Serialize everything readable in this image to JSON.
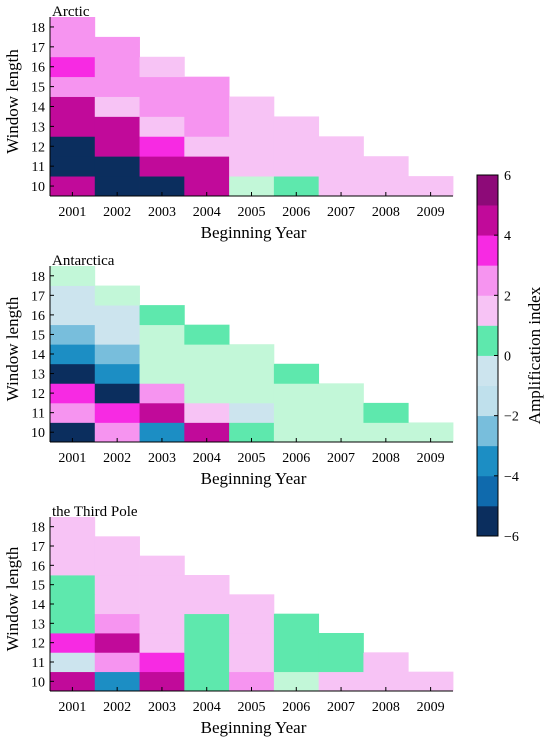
{
  "chart_data": [
    {
      "type": "heatmap",
      "title": "Arctic",
      "xlabel": "Beginning Year",
      "ylabel": "Window length",
      "x": [
        2001,
        2002,
        2003,
        2004,
        2005,
        2006,
        2007,
        2008,
        2009
      ],
      "y": [
        10,
        11,
        12,
        13,
        14,
        15,
        16,
        17,
        18
      ],
      "values": [
        [
          5,
          -6,
          -6,
          5,
          0,
          1,
          2,
          2,
          2
        ],
        [
          -6,
          -6,
          5,
          5,
          2,
          2,
          2,
          2,
          null
        ],
        [
          -6,
          5,
          4,
          2,
          2,
          2,
          2,
          null,
          null
        ],
        [
          5,
          5,
          2,
          3,
          2,
          2,
          null,
          null,
          null
        ],
        [
          5,
          2,
          3,
          3,
          2,
          null,
          null,
          null,
          null
        ],
        [
          3,
          3,
          3,
          3,
          null,
          null,
          null,
          null,
          null
        ],
        [
          4,
          3,
          2,
          null,
          null,
          null,
          null,
          null,
          null
        ],
        [
          3,
          3,
          null,
          null,
          null,
          null,
          null,
          null,
          null
        ],
        [
          3,
          null,
          null,
          null,
          null,
          null,
          null,
          null,
          null
        ]
      ]
    },
    {
      "type": "heatmap",
      "title": "Antarctica",
      "xlabel": "Beginning Year",
      "ylabel": "Window length",
      "x": [
        2001,
        2002,
        2003,
        2004,
        2005,
        2006,
        2007,
        2008,
        2009
      ],
      "y": [
        10,
        11,
        12,
        13,
        14,
        15,
        16,
        17,
        18
      ],
      "values": [
        [
          -6,
          3,
          -4,
          5,
          1,
          0,
          0,
          0,
          0
        ],
        [
          3,
          4,
          5,
          2,
          -1,
          0,
          0,
          1,
          null
        ],
        [
          4,
          -6,
          3,
          0,
          0,
          0,
          0,
          null,
          null
        ],
        [
          -6,
          -4,
          0,
          0,
          0,
          1,
          null,
          null,
          null
        ],
        [
          -4,
          -3,
          0,
          0,
          0,
          null,
          null,
          null,
          null
        ],
        [
          -3,
          -1,
          0,
          1,
          null,
          null,
          null,
          null,
          null
        ],
        [
          -1,
          -1,
          1,
          null,
          null,
          null,
          null,
          null,
          null
        ],
        [
          -1,
          0,
          null,
          null,
          null,
          null,
          null,
          null,
          null
        ],
        [
          0,
          null,
          null,
          null,
          null,
          null,
          null,
          null,
          null
        ]
      ]
    },
    {
      "type": "heatmap",
      "title": "the Third Pole",
      "xlabel": "Beginning Year",
      "ylabel": "Window length",
      "x": [
        2001,
        2002,
        2003,
        2004,
        2005,
        2006,
        2007,
        2008,
        2009
      ],
      "y": [
        10,
        11,
        12,
        13,
        14,
        15,
        16,
        17,
        18
      ],
      "values": [
        [
          5,
          -4,
          5,
          1,
          3,
          0,
          2,
          2,
          2
        ],
        [
          -1,
          3,
          4,
          1,
          2,
          1,
          1,
          2,
          null
        ],
        [
          4,
          5,
          2,
          1,
          2,
          1,
          1,
          null,
          null
        ],
        [
          1,
          3,
          2,
          1,
          2,
          1,
          null,
          null,
          null
        ],
        [
          1,
          2,
          2,
          2,
          2,
          null,
          null,
          null,
          null
        ],
        [
          1,
          2,
          2,
          2,
          null,
          null,
          null,
          null,
          null
        ],
        [
          2,
          2,
          2,
          null,
          null,
          null,
          null,
          null,
          null
        ],
        [
          2,
          2,
          null,
          null,
          null,
          null,
          null,
          null,
          null
        ],
        [
          2,
          null,
          null,
          null,
          null,
          null,
          null,
          null,
          null
        ]
      ]
    }
  ],
  "colorbar": {
    "label": "Amplification index",
    "range": [
      -6,
      6
    ],
    "ticks": [
      6,
      4,
      2,
      0,
      -2,
      -4,
      -6
    ],
    "tick_labels": [
      "6",
      "4",
      "2",
      "0",
      "−2",
      "−4",
      "−6"
    ],
    "colors": {
      "-6": "#0b2e5e",
      "-5": "#0f6aad",
      "-4": "#1c8ec4",
      "-3": "#78bedc",
      "-2": "#bfe0ec",
      "-1": "#cce4ee",
      "0": "#c2f7d8",
      "1": "#5ee8ad",
      "2": "#f7c3f5",
      "3": "#f694f0",
      "4": "#f72ae3",
      "5": "#c10a9a",
      "6": "#8d0a78"
    }
  }
}
